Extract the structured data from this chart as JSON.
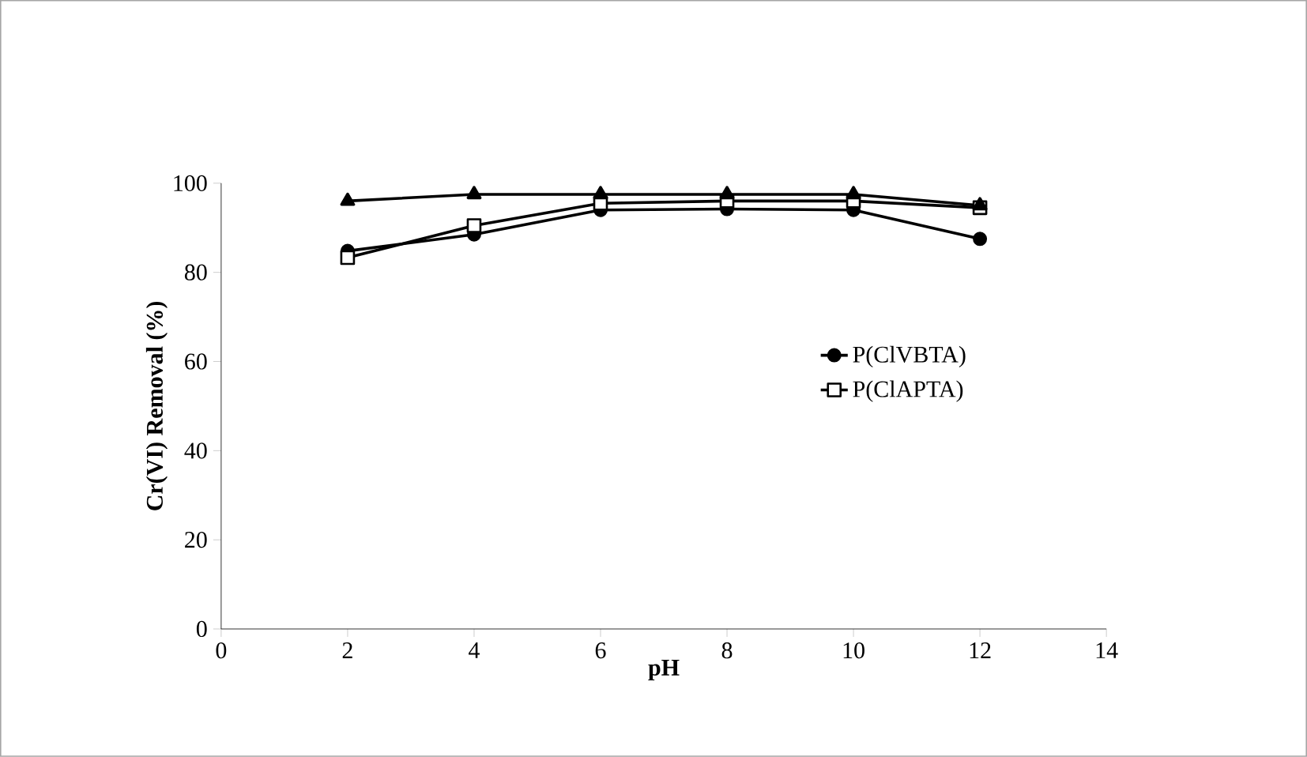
{
  "chart_data": {
    "type": "line",
    "xlabel": "pH",
    "ylabel": "Cr(VI) Removal (%)",
    "x": [
      2,
      4,
      6,
      8,
      10,
      12
    ],
    "series": [
      {
        "name": "P(ClVBTA)",
        "color": "#000000",
        "marker": "circle",
        "values": [
          84.8,
          88.5,
          94,
          94.2,
          94,
          87.5
        ]
      },
      {
        "name": "P(ClAPTA)",
        "color": "#000000",
        "marker": "square",
        "values": [
          83.3,
          90.5,
          95.5,
          96,
          96,
          94.5
        ]
      },
      {
        "color": "#000000",
        "marker": "triangle",
        "values": [
          96,
          97.5,
          97.5,
          97.5,
          97.5,
          95
        ]
      }
    ],
    "xlim": [
      0,
      14
    ],
    "xticks": [
      0,
      2,
      4,
      6,
      8,
      10,
      12,
      14
    ],
    "ylim": [
      0,
      100
    ],
    "yticks": [
      0,
      20,
      40,
      60,
      80,
      100
    ],
    "grid": false,
    "legend": "right"
  }
}
